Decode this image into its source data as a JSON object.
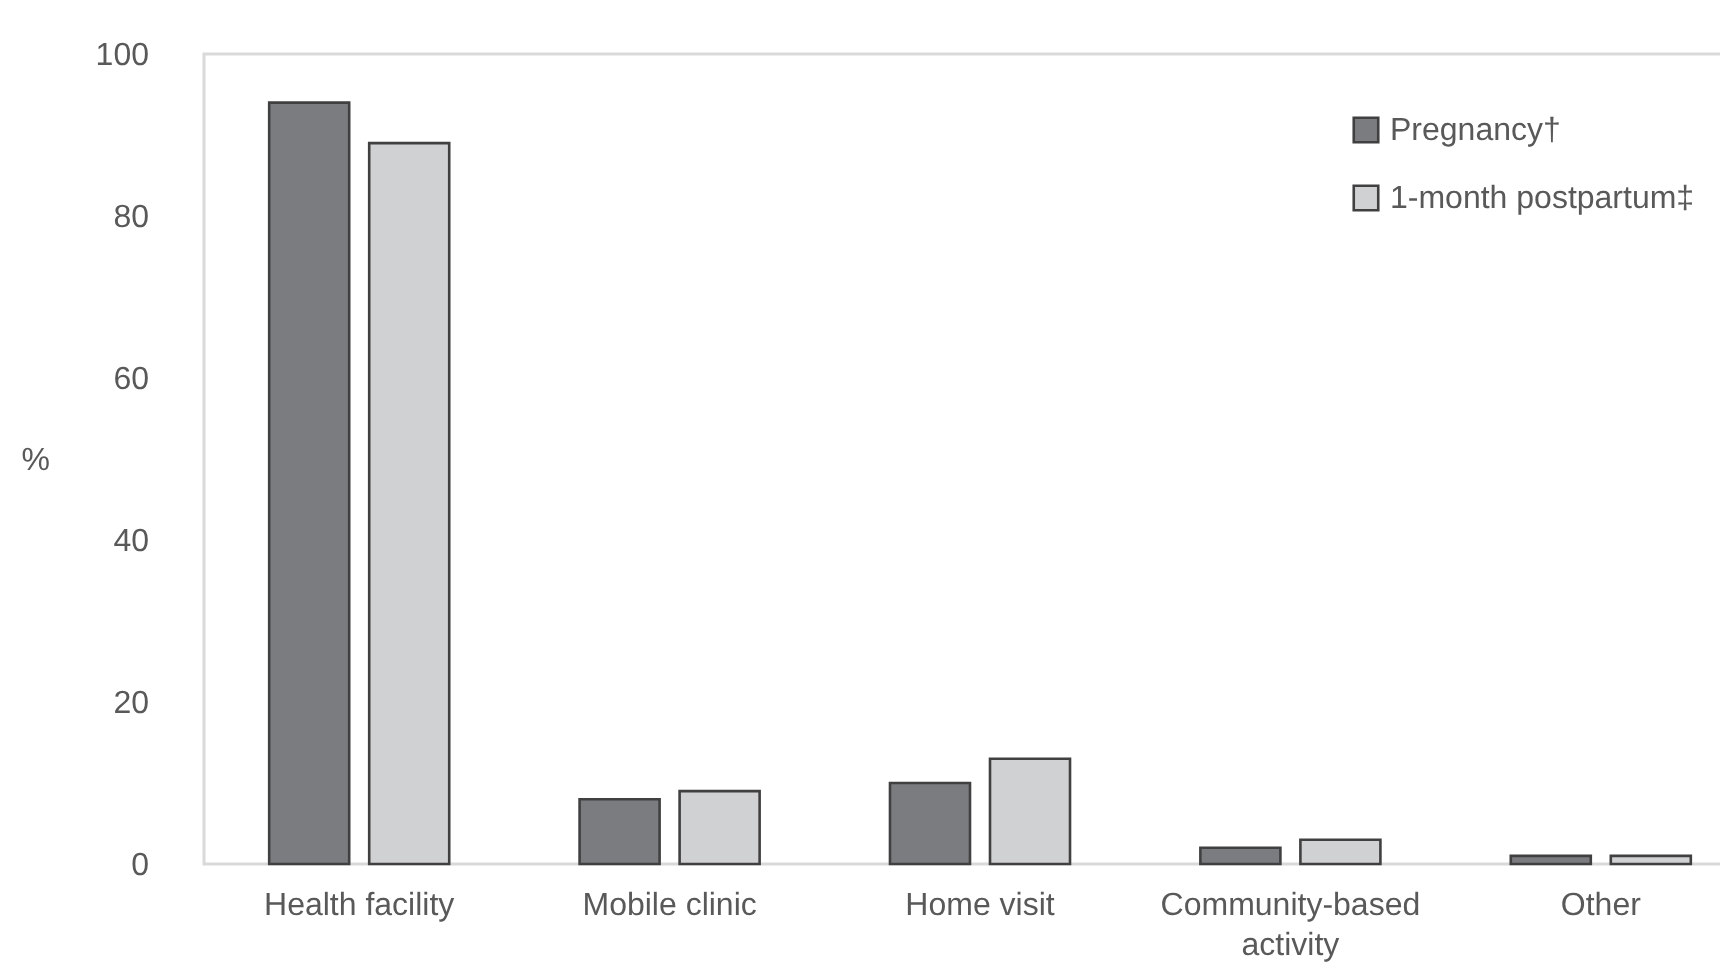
{
  "chart_data": {
    "type": "bar",
    "ylabel": "%",
    "categories": [
      "Health facility",
      "Mobile clinic",
      "Home visit",
      "Community-based activity",
      "Other"
    ],
    "series": [
      {
        "name": "Pregnancy†",
        "color": "#7b7c80",
        "values": [
          94,
          8,
          10,
          2,
          1
        ]
      },
      {
        "name": "1-month postpartum‡",
        "color": "#d0d1d3",
        "values": [
          89,
          9,
          13,
          3,
          1
        ]
      }
    ],
    "ylim": [
      0,
      100
    ],
    "yticks": [
      0,
      20,
      40,
      60,
      80,
      100
    ],
    "grid": false,
    "legend": "top right"
  }
}
